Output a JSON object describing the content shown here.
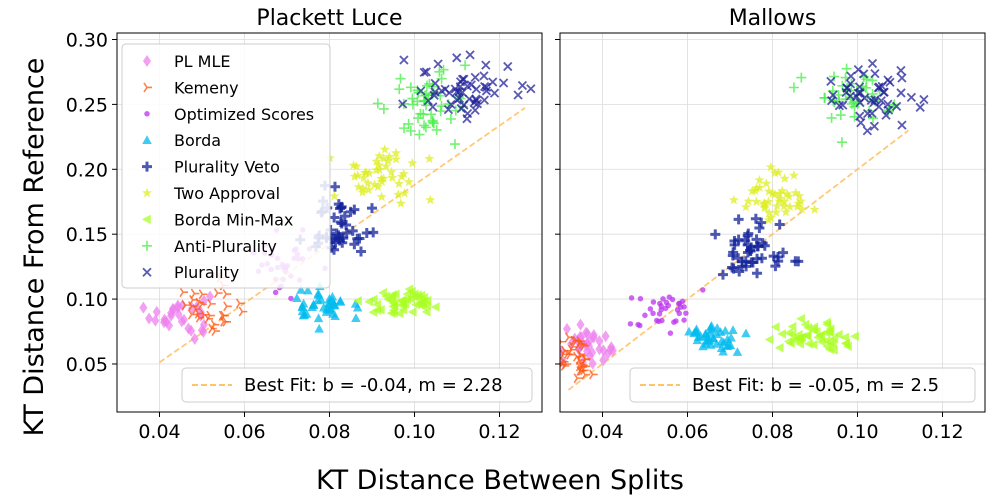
{
  "figure": {
    "supxlabel": "KT Distance Between Splits",
    "supylabel": "KT Distance From Reference"
  },
  "colors": {
    "PL MLE": "#ee82ee",
    "Kemeny": "#ff5511",
    "Optimized Scores": "#bb33ee",
    "Borda": "#00bbee",
    "Plurality Veto": "#112299",
    "Two Approval": "#ddee22",
    "Borda Min-Max": "#aaff22",
    "Anti-Plurality": "#44ee44",
    "Plurality": "#222299",
    "fit": "#ffbb55"
  },
  "markers": {
    "PL MLE": "diamond",
    "Kemeny": "tri-right",
    "Optimized Scores": "dot",
    "Borda": "triangle-up",
    "Plurality Veto": "plus-bold",
    "Two Approval": "star",
    "Borda Min-Max": "triangle-left",
    "Anti-Plurality": "plus",
    "Plurality": "x"
  },
  "chart_data": [
    {
      "type": "scatter",
      "title": "Plackett Luce",
      "xlim": [
        0.03,
        0.13
      ],
      "ylim": [
        0.013,
        0.305
      ],
      "xticks": [
        "0.04",
        "0.06",
        "0.08",
        "0.10",
        "0.12"
      ],
      "xtick_values": [
        0.04,
        0.06,
        0.08,
        0.1,
        0.12
      ],
      "yticks": [
        "0.05",
        "0.10",
        "0.15",
        "0.20",
        "0.25",
        "0.30"
      ],
      "ytick_values": [
        0.05,
        0.1,
        0.15,
        0.2,
        0.25,
        0.3
      ],
      "grid": true,
      "legend_location": "upper-left",
      "fit": {
        "label": "Best Fit: b = -0.04, m = 2.28",
        "b": -0.04,
        "m": 2.28,
        "x_range": [
          0.04,
          0.126
        ]
      },
      "series": [
        {
          "name": "PL MLE",
          "n": 30,
          "cx": 0.045,
          "cy": 0.088,
          "sx": 0.0035,
          "sy": 0.009
        },
        {
          "name": "Kemeny",
          "n": 30,
          "cx": 0.052,
          "cy": 0.093,
          "sx": 0.004,
          "sy": 0.01
        },
        {
          "name": "Optimized Scores",
          "n": 35,
          "cx": 0.07,
          "cy": 0.13,
          "sx": 0.004,
          "sy": 0.012
        },
        {
          "name": "Borda",
          "n": 40,
          "cx": 0.078,
          "cy": 0.095,
          "sx": 0.0035,
          "sy": 0.007
        },
        {
          "name": "Plurality Veto",
          "n": 45,
          "cx": 0.082,
          "cy": 0.158,
          "sx": 0.004,
          "sy": 0.014
        },
        {
          "name": "Two Approval",
          "n": 45,
          "cx": 0.092,
          "cy": 0.195,
          "sx": 0.005,
          "sy": 0.012
        },
        {
          "name": "Borda Min-Max",
          "n": 50,
          "cx": 0.098,
          "cy": 0.098,
          "sx": 0.004,
          "sy": 0.006
        },
        {
          "name": "Anti-Plurality",
          "n": 50,
          "cx": 0.104,
          "cy": 0.248,
          "sx": 0.005,
          "sy": 0.013
        },
        {
          "name": "Plurality",
          "n": 55,
          "cx": 0.112,
          "cy": 0.26,
          "sx": 0.006,
          "sy": 0.012
        }
      ]
    },
    {
      "type": "scatter",
      "title": "Mallows",
      "xlim": [
        0.03,
        0.13
      ],
      "ylim": [
        0.013,
        0.305
      ],
      "xticks": [
        "0.04",
        "0.06",
        "0.08",
        "0.10",
        "0.12"
      ],
      "xtick_values": [
        0.04,
        0.06,
        0.08,
        0.1,
        0.12
      ],
      "yticks": [
        "0.05",
        "0.10",
        "0.15",
        "0.20",
        "0.25",
        "0.30"
      ],
      "ytick_values": [
        0.05,
        0.1,
        0.15,
        0.2,
        0.25,
        0.3
      ],
      "grid": true,
      "fit": {
        "label": "Best Fit: b = -0.05, m = 2.5",
        "b": -0.05,
        "m": 2.5,
        "x_range": [
          0.032,
          0.112
        ]
      },
      "series": [
        {
          "name": "PL MLE",
          "n": 35,
          "cx": 0.037,
          "cy": 0.066,
          "sx": 0.003,
          "sy": 0.007
        },
        {
          "name": "Kemeny",
          "n": 35,
          "cx": 0.034,
          "cy": 0.057,
          "sx": 0.0025,
          "sy": 0.008
        },
        {
          "name": "Optimized Scores",
          "n": 35,
          "cx": 0.054,
          "cy": 0.093,
          "sx": 0.004,
          "sy": 0.008
        },
        {
          "name": "Borda",
          "n": 40,
          "cx": 0.066,
          "cy": 0.07,
          "sx": 0.003,
          "sy": 0.005
        },
        {
          "name": "Plurality Veto",
          "n": 45,
          "cx": 0.075,
          "cy": 0.137,
          "sx": 0.004,
          "sy": 0.012
        },
        {
          "name": "Two Approval",
          "n": 45,
          "cx": 0.081,
          "cy": 0.178,
          "sx": 0.004,
          "sy": 0.01
        },
        {
          "name": "Borda Min-Max",
          "n": 50,
          "cx": 0.09,
          "cy": 0.071,
          "sx": 0.004,
          "sy": 0.005
        },
        {
          "name": "Anti-Plurality",
          "n": 45,
          "cx": 0.101,
          "cy": 0.255,
          "sx": 0.005,
          "sy": 0.011
        },
        {
          "name": "Plurality",
          "n": 50,
          "cx": 0.103,
          "cy": 0.252,
          "sx": 0.006,
          "sy": 0.012
        }
      ]
    }
  ]
}
